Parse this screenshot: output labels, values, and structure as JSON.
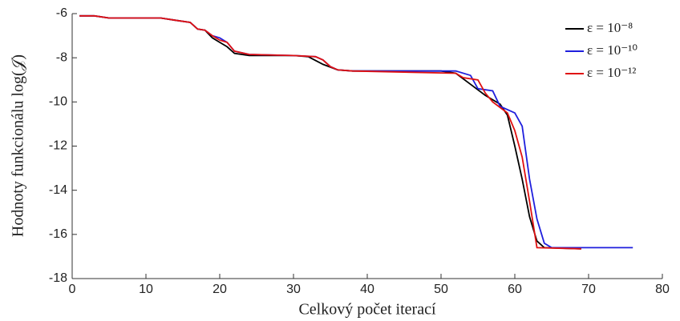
{
  "chart_data": {
    "type": "line",
    "xlabel": "Celkový počet iterací",
    "ylabel": "Hodnoty funkcionálu log(𝒥)",
    "xlim": [
      0,
      80
    ],
    "xticks": [
      0,
      10,
      20,
      30,
      40,
      50,
      60,
      70,
      80
    ],
    "ylim": [
      -18,
      -6
    ],
    "yticks": [
      -18,
      -16,
      -14,
      -12,
      -10,
      -8,
      -6
    ],
    "legend": "upper right",
    "series": [
      {
        "name": "ε = 10⁻⁸",
        "color": "#000000",
        "x": [
          1,
          3,
          5,
          12,
          14,
          16,
          17,
          18,
          19,
          20,
          21,
          22,
          24,
          30,
          32,
          34,
          36,
          38,
          50,
          52,
          54,
          56,
          58,
          59,
          60,
          61,
          62,
          63,
          64,
          69
        ],
        "values": [
          -6.1,
          -6.1,
          -6.2,
          -6.2,
          -6.3,
          -6.4,
          -6.7,
          -6.75,
          -7.1,
          -7.3,
          -7.5,
          -7.8,
          -7.9,
          -7.9,
          -7.95,
          -8.3,
          -8.55,
          -8.6,
          -8.6,
          -8.7,
          -9.2,
          -9.7,
          -10.1,
          -10.6,
          -12.0,
          -13.5,
          -15.2,
          -16.3,
          -16.6,
          -16.65
        ]
      },
      {
        "name": "ε = 10⁻¹⁰",
        "color": "#1f1fdd",
        "x": [
          1,
          3,
          5,
          12,
          14,
          16,
          17,
          18,
          19,
          20,
          21,
          22,
          24,
          30,
          33,
          34,
          35,
          36,
          38,
          52,
          54,
          55,
          57,
          58,
          60,
          61,
          62,
          63,
          64,
          65,
          76
        ],
        "values": [
          -6.1,
          -6.1,
          -6.2,
          -6.2,
          -6.3,
          -6.4,
          -6.7,
          -6.75,
          -7.0,
          -7.1,
          -7.3,
          -7.7,
          -7.85,
          -7.9,
          -7.95,
          -8.1,
          -8.4,
          -8.55,
          -8.6,
          -8.6,
          -8.8,
          -9.4,
          -9.5,
          -10.2,
          -10.5,
          -11.1,
          -13.5,
          -15.3,
          -16.4,
          -16.6,
          -16.6
        ]
      },
      {
        "name": "ε = 10⁻¹²",
        "color": "#e01010",
        "x": [
          1,
          3,
          5,
          12,
          14,
          16,
          17,
          18,
          19,
          20,
          21,
          22,
          24,
          30,
          33,
          34,
          35,
          36,
          38,
          52,
          53,
          55,
          56,
          57,
          59,
          60,
          61,
          62,
          63,
          69
        ],
        "values": [
          -6.1,
          -6.1,
          -6.2,
          -6.2,
          -6.3,
          -6.4,
          -6.7,
          -6.75,
          -7.0,
          -7.2,
          -7.3,
          -7.7,
          -7.85,
          -7.9,
          -7.95,
          -8.1,
          -8.4,
          -8.55,
          -8.6,
          -8.7,
          -8.9,
          -9.0,
          -9.6,
          -10.0,
          -10.5,
          -11.3,
          -12.5,
          -14.5,
          -16.6,
          -16.65
        ]
      }
    ]
  }
}
